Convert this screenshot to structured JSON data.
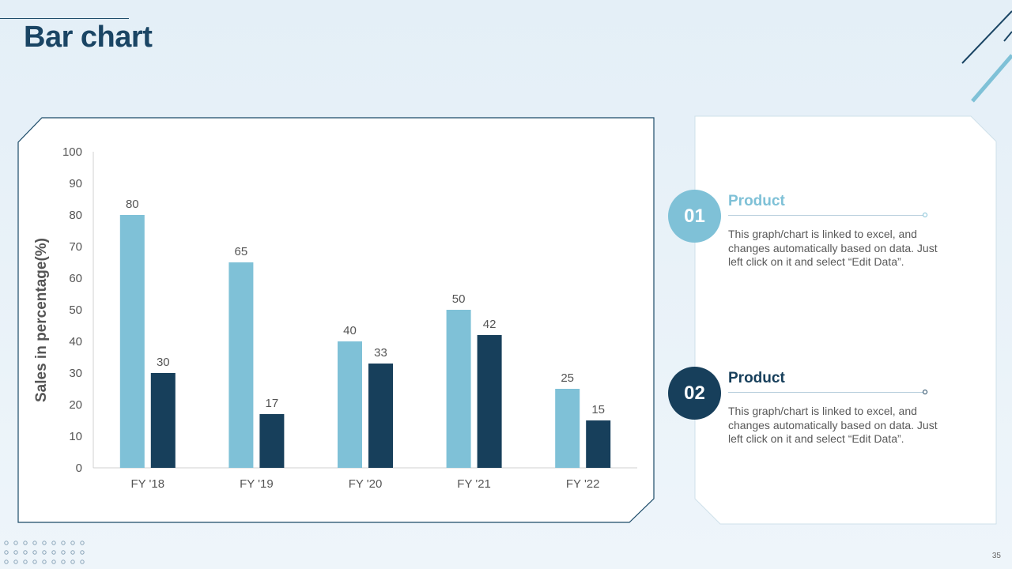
{
  "slide": {
    "title": "Bar chart",
    "page_number": "35"
  },
  "info": [
    {
      "number": "01",
      "title": "Product",
      "description": "This graph/chart is linked to excel, and changes automatically based on data. Just left click on it and select “Edit Data”.",
      "color": "#7fc1d7"
    },
    {
      "number": "02",
      "title": "Product",
      "description": "This graph/chart is linked to excel, and changes automatically based on data. Just left click on it and select “Edit Data”.",
      "color": "#173f5b"
    }
  ],
  "chart_data": {
    "type": "bar",
    "title": "",
    "xlabel": "",
    "ylabel": "Sales in percentage(%)",
    "categories": [
      "FY '18",
      "FY '19",
      "FY '20",
      "FY '21",
      "FY '22"
    ],
    "series": [
      {
        "values": [
          80,
          65,
          40,
          50,
          25
        ],
        "color": "#7fc1d7"
      },
      {
        "values": [
          30,
          17,
          33,
          42,
          15
        ],
        "color": "#173f5b"
      }
    ],
    "ylim": [
      0,
      100
    ],
    "yticks": [
      0,
      10,
      20,
      30,
      40,
      50,
      60,
      70,
      80,
      90,
      100
    ],
    "grid": false,
    "legend": "none",
    "data_labels": true
  }
}
